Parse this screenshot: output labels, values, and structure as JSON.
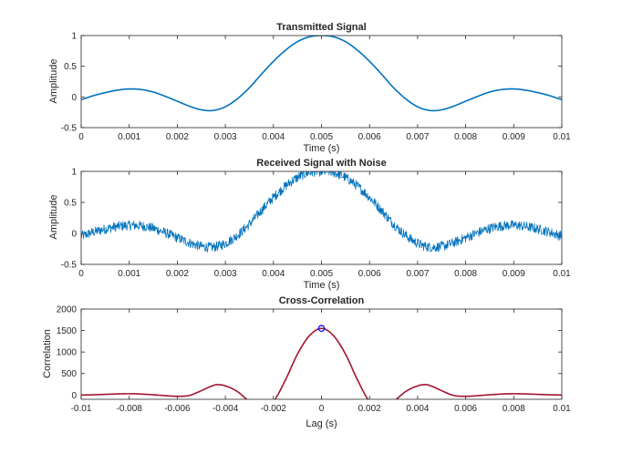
{
  "chart_data": [
    {
      "type": "line",
      "title": "Transmitted Signal",
      "xlabel": "Time (s)",
      "ylabel": "Amplitude",
      "xlim": [
        0,
        0.01
      ],
      "ylim": [
        -0.5,
        1
      ],
      "xticks": [
        "0",
        "0.001",
        "0.002",
        "0.003",
        "0.004",
        "0.005",
        "0.006",
        "0.007",
        "0.008",
        "0.009",
        "0.01"
      ],
      "yticks": [
        "-0.5",
        "0",
        "0.5",
        "1"
      ],
      "series": [
        {
          "color": "#0072bd",
          "x": [
            0,
            0.00025,
            0.0005,
            0.00075,
            0.001,
            0.00125,
            0.0015,
            0.00175,
            0.002,
            0.00225,
            0.0025,
            0.00275,
            0.003,
            0.00325,
            0.0035,
            0.00375,
            0.004,
            0.00425,
            0.0045,
            0.00475,
            0.005,
            0.00525,
            0.0055,
            0.00575,
            0.006,
            0.00625,
            0.0065,
            0.00675,
            0.007,
            0.00725,
            0.0075,
            0.00775,
            0.008,
            0.00825,
            0.0085,
            0.00875,
            0.009,
            0.00925,
            0.0095,
            0.00975,
            0.01
          ],
          "y": [
            -0.04,
            0.02,
            0.07,
            0.11,
            0.13,
            0.12,
            0.08,
            0.01,
            -0.07,
            -0.15,
            -0.21,
            -0.22,
            -0.16,
            -0.03,
            0.15,
            0.37,
            0.58,
            0.76,
            0.9,
            0.98,
            1.0,
            0.98,
            0.9,
            0.76,
            0.58,
            0.37,
            0.15,
            -0.03,
            -0.16,
            -0.22,
            -0.21,
            -0.15,
            -0.07,
            0.01,
            0.08,
            0.12,
            0.13,
            0.11,
            0.07,
            0.02,
            -0.04
          ]
        }
      ]
    },
    {
      "type": "line",
      "title": "Received Signal with Noise",
      "xlabel": "Time (s)",
      "ylabel": "Amplitude",
      "xlim": [
        0,
        0.01
      ],
      "ylim": [
        -0.5,
        1
      ],
      "xticks": [
        "0",
        "0.001",
        "0.002",
        "0.003",
        "0.004",
        "0.005",
        "0.006",
        "0.007",
        "0.008",
        "0.009",
        "0.01"
      ],
      "yticks": [
        "-0.5",
        "0",
        "0.5",
        "1"
      ],
      "noise_amplitude": 0.05,
      "series": [
        {
          "color": "#0072bd",
          "x": [
            0,
            0.00025,
            0.0005,
            0.00075,
            0.001,
            0.00125,
            0.0015,
            0.00175,
            0.002,
            0.00225,
            0.0025,
            0.00275,
            0.003,
            0.00325,
            0.0035,
            0.00375,
            0.004,
            0.00425,
            0.0045,
            0.00475,
            0.005,
            0.00525,
            0.0055,
            0.00575,
            0.006,
            0.00625,
            0.0065,
            0.00675,
            0.007,
            0.00725,
            0.0075,
            0.00775,
            0.008,
            0.00825,
            0.0085,
            0.00875,
            0.009,
            0.00925,
            0.0095,
            0.00975,
            0.01
          ],
          "y": [
            -0.04,
            0.02,
            0.07,
            0.11,
            0.13,
            0.12,
            0.08,
            0.01,
            -0.07,
            -0.15,
            -0.21,
            -0.22,
            -0.16,
            -0.03,
            0.15,
            0.37,
            0.58,
            0.76,
            0.9,
            0.98,
            1.0,
            0.98,
            0.9,
            0.76,
            0.58,
            0.37,
            0.15,
            -0.03,
            -0.16,
            -0.22,
            -0.21,
            -0.15,
            -0.07,
            0.01,
            0.08,
            0.12,
            0.13,
            0.11,
            0.07,
            0.02,
            -0.04
          ]
        }
      ]
    },
    {
      "type": "line",
      "title": "Cross-Correlation",
      "xlabel": "Lag (s)",
      "ylabel": "Correlation",
      "xlim": [
        -0.01,
        0.01
      ],
      "ylim": [
        -100,
        2000
      ],
      "xticks": [
        "-0.01",
        "-0.008",
        "-0.006",
        "-0.004",
        "-0.002",
        "0",
        "0.002",
        "0.004",
        "0.006",
        "0.008",
        "0.01"
      ],
      "yticks": [
        "0",
        "500",
        "1000",
        "1500",
        "2000"
      ],
      "series": [
        {
          "color": "#a2142f",
          "x": [
            -0.01,
            -0.0095,
            -0.009,
            -0.0085,
            -0.008,
            -0.0075,
            -0.007,
            -0.0065,
            -0.006,
            -0.0055,
            -0.005,
            -0.0045,
            -0.0043,
            -0.004,
            -0.0035,
            -0.003,
            -0.0027,
            -0.0024,
            -0.0022,
            -0.002,
            -0.0015,
            -0.001,
            -0.0005,
            0,
            0.0005,
            0.001,
            0.0015,
            0.002,
            0.0022,
            0.0024,
            0.0027,
            0.003,
            0.0035,
            0.004,
            0.0043,
            0.0045,
            0.005,
            0.0055,
            0.006,
            0.0065,
            0.007,
            0.0075,
            0.008,
            0.0085,
            0.009,
            0.0095,
            0.01
          ],
          "y": [
            0,
            5,
            15,
            25,
            30,
            22,
            5,
            -15,
            -30,
            -10,
            100,
            220,
            240,
            210,
            80,
            -150,
            -290,
            -340,
            -300,
            -150,
            350,
            950,
            1380,
            1550,
            1380,
            950,
            350,
            -150,
            -300,
            -340,
            -290,
            -150,
            80,
            210,
            240,
            220,
            100,
            -10,
            -30,
            -15,
            5,
            22,
            30,
            25,
            15,
            5,
            0
          ]
        }
      ],
      "marker": {
        "x": 0,
        "y": 1550,
        "color": "#0000ff"
      }
    }
  ]
}
